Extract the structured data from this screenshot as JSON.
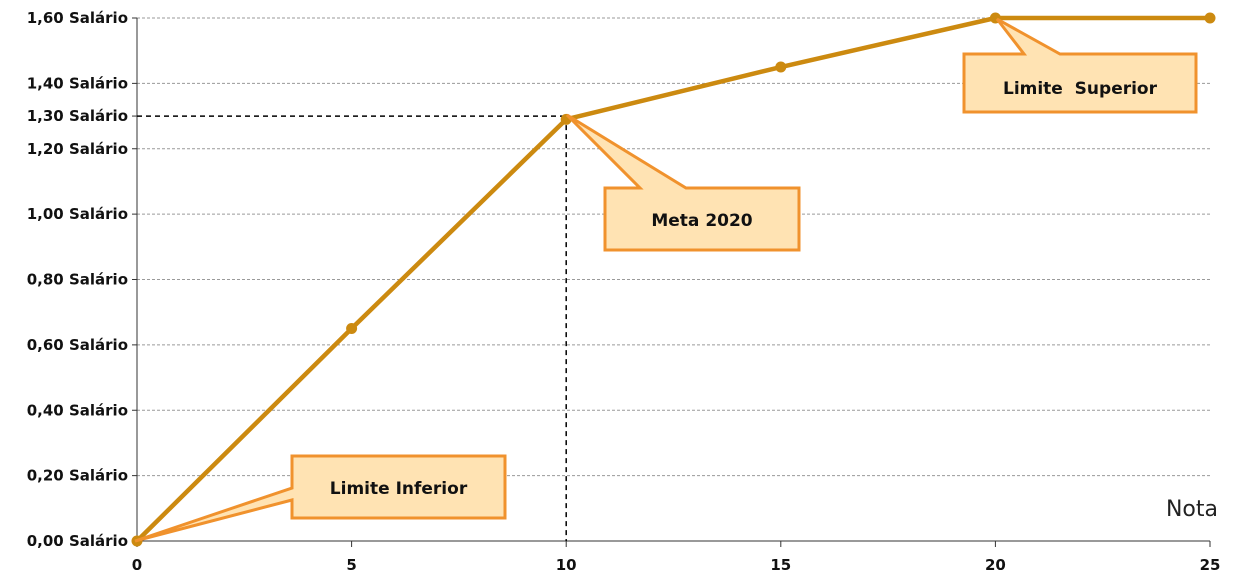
{
  "chart_data": {
    "type": "line",
    "xlabel": "Nota",
    "ylabel": "",
    "xlim": [
      0,
      25
    ],
    "ylim": [
      0,
      1.6
    ],
    "x_ticks": [
      0,
      5,
      10,
      15,
      20,
      25
    ],
    "x_tick_labels": [
      "0",
      "5",
      "10",
      "15",
      "20",
      "25"
    ],
    "y_ticks": [
      0,
      0.2,
      0.4,
      0.6,
      0.8,
      1.0,
      1.2,
      1.3,
      1.4,
      1.6
    ],
    "y_tick_labels": [
      "0,00 Salário",
      "0,20 Salário",
      "0,40 Salário",
      "0,60 Salário",
      "0,80 Salário",
      "1,00 Salário",
      "1,20 Salário",
      "1,30 Salário",
      "1,40 Salário",
      "1,60 Salário"
    ],
    "grid": true,
    "series": [
      {
        "color": "#cc8a10",
        "points": [
          {
            "x": 0,
            "y": 0.0
          },
          {
            "x": 5,
            "y": 0.65
          },
          {
            "x": 10,
            "y": 1.29
          },
          {
            "x": 15,
            "y": 1.45
          },
          {
            "x": 20,
            "y": 1.6
          },
          {
            "x": 25,
            "y": 1.6
          }
        ]
      }
    ],
    "reference_lines": [
      {
        "type": "horizontal",
        "y": 1.3,
        "x_from": 0,
        "x_to": 10,
        "style": "dashed"
      },
      {
        "type": "vertical",
        "x": 10,
        "y_from": 0,
        "y_to": 1.3,
        "style": "dashed"
      }
    ],
    "annotations": [
      {
        "text": "Limite Inferior",
        "point": {
          "x": 0,
          "y": 0
        }
      },
      {
        "text": "Meta 2020",
        "point": {
          "x": 10,
          "y": 1.29
        }
      },
      {
        "text": "Limite  Superior",
        "point": {
          "x": 20,
          "y": 1.6
        }
      }
    ],
    "colors": {
      "line": "#cc8a10",
      "callout_fill": "#ffe3b3",
      "callout_border": "#f0922d"
    }
  }
}
